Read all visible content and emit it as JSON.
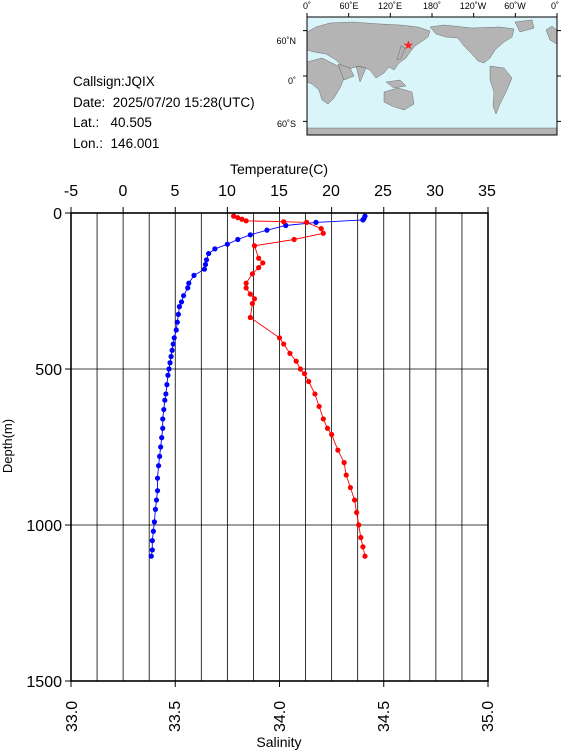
{
  "station": {
    "callsign_label": "Callsign:",
    "callsign": "JQIX",
    "date_label": "Date:",
    "date": "2025/07/20 15:28(UTC)",
    "lat_label": "Lat.:",
    "lat": "40.505",
    "lon_label": "Lon.:",
    "lon": "146.001"
  },
  "map": {
    "top_ticks": [
      "0˚",
      "60˚E",
      "120˚E",
      "180˚",
      "120˚W",
      "60˚W",
      "0˚"
    ],
    "lat_ticks": [
      "60˚N",
      "0˚",
      "60˚S"
    ],
    "marker": {
      "lat": 40.5,
      "lon": 146.0
    },
    "colors": {
      "ocean": "#d9f5fa",
      "land": "#b4b4b4",
      "marker": "#ff2020"
    }
  },
  "chart_data": {
    "type": "line",
    "ylabel": "Depth(m)",
    "y_ticks": [
      "0",
      "500",
      "1000",
      "1500"
    ],
    "ylim": [
      0,
      1500
    ],
    "y_inverted": true,
    "temperature_axis": {
      "label": "Temperature(C)",
      "ticks": [
        "-5",
        "0",
        "5",
        "10",
        "15",
        "20",
        "25",
        "30",
        "35"
      ],
      "range": [
        -5,
        35
      ]
    },
    "salinity_axis": {
      "label": "Salinity",
      "ticks": [
        "33.0",
        "33.5",
        "34.0",
        "34.5",
        "35.0"
      ],
      "range": [
        33.0,
        35.0
      ]
    },
    "grid": true,
    "series": [
      {
        "color": "#0000ff",
        "axis": "temperature",
        "points": [
          [
            23.2,
            10
          ],
          [
            23.1,
            18
          ],
          [
            23.0,
            22
          ],
          [
            18.5,
            30
          ],
          [
            15.6,
            40
          ],
          [
            13.8,
            55
          ],
          [
            12.2,
            70
          ],
          [
            11.0,
            85
          ],
          [
            10.0,
            100
          ],
          [
            8.8,
            115
          ],
          [
            8.2,
            130
          ],
          [
            8.0,
            150
          ],
          [
            7.9,
            165
          ],
          [
            7.8,
            180
          ],
          [
            6.8,
            200
          ],
          [
            6.3,
            225
          ],
          [
            6.2,
            240
          ],
          [
            5.8,
            265
          ],
          [
            5.6,
            285
          ],
          [
            5.4,
            300
          ],
          [
            5.3,
            325
          ],
          [
            5.2,
            350
          ],
          [
            5.1,
            375
          ],
          [
            4.9,
            400
          ],
          [
            4.8,
            420
          ],
          [
            4.7,
            440
          ],
          [
            4.6,
            460
          ],
          [
            4.5,
            480
          ],
          [
            4.4,
            500
          ],
          [
            4.3,
            520
          ],
          [
            4.2,
            550
          ],
          [
            4.1,
            580
          ],
          [
            4.0,
            600
          ],
          [
            3.9,
            630
          ],
          [
            3.8,
            660
          ],
          [
            3.8,
            690
          ],
          [
            3.7,
            720
          ],
          [
            3.6,
            750
          ],
          [
            3.5,
            780
          ],
          [
            3.4,
            810
          ],
          [
            3.3,
            850
          ],
          [
            3.3,
            890
          ],
          [
            3.2,
            920
          ],
          [
            3.1,
            950
          ],
          [
            3.0,
            990
          ],
          [
            2.9,
            1020
          ],
          [
            2.8,
            1050
          ],
          [
            2.8,
            1080
          ],
          [
            2.7,
            1100
          ]
        ]
      },
      {
        "color": "#ff0000",
        "axis": "salinity",
        "points": [
          [
            33.78,
            10
          ],
          [
            33.8,
            15
          ],
          [
            33.82,
            20
          ],
          [
            33.84,
            25
          ],
          [
            34.02,
            28
          ],
          [
            34.13,
            30
          ],
          [
            34.2,
            50
          ],
          [
            34.21,
            65
          ],
          [
            34.07,
            85
          ],
          [
            33.88,
            105
          ],
          [
            33.9,
            145
          ],
          [
            33.92,
            160
          ],
          [
            33.9,
            175
          ],
          [
            33.87,
            195
          ],
          [
            33.84,
            225
          ],
          [
            33.84,
            240
          ],
          [
            33.86,
            260
          ],
          [
            33.88,
            275
          ],
          [
            33.87,
            290
          ],
          [
            33.86,
            335
          ],
          [
            34.0,
            400
          ],
          [
            34.02,
            420
          ],
          [
            34.05,
            450
          ],
          [
            34.08,
            475
          ],
          [
            34.1,
            500
          ],
          [
            34.12,
            515
          ],
          [
            34.14,
            540
          ],
          [
            34.17,
            580
          ],
          [
            34.19,
            620
          ],
          [
            34.21,
            660
          ],
          [
            34.23,
            690
          ],
          [
            34.25,
            710
          ],
          [
            34.28,
            760
          ],
          [
            34.31,
            800
          ],
          [
            34.32,
            840
          ],
          [
            34.34,
            880
          ],
          [
            34.36,
            920
          ],
          [
            34.37,
            960
          ],
          [
            34.38,
            1000
          ],
          [
            34.39,
            1040
          ],
          [
            34.4,
            1070
          ],
          [
            34.41,
            1100
          ]
        ]
      }
    ]
  }
}
